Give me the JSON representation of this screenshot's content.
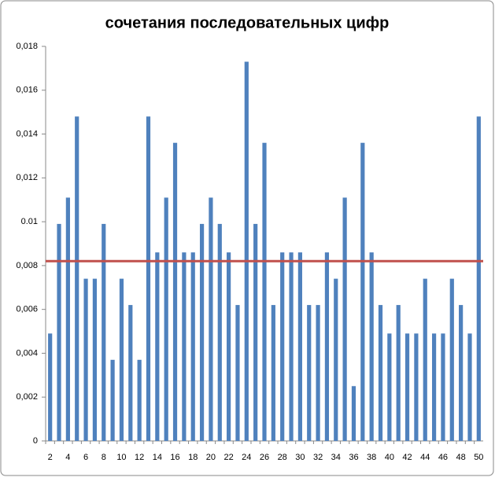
{
  "chart_data": {
    "type": "bar",
    "title": "сочетания последовательных цифр",
    "categories": [
      "2",
      null,
      "4",
      null,
      "6",
      null,
      "8",
      null,
      "10",
      null,
      "12",
      null,
      "14",
      null,
      "16",
      null,
      "18",
      null,
      "20",
      null,
      "22",
      null,
      "24",
      null,
      "26",
      null,
      "28",
      null,
      "30",
      null,
      "32",
      null,
      "34",
      null,
      "36",
      null,
      "38",
      null,
      "40",
      null,
      "42",
      null,
      "44",
      null,
      "46",
      null,
      "48",
      null,
      "50"
    ],
    "values": [
      0.0049,
      0.0099,
      0.0111,
      0.0148,
      0.0074,
      0.0074,
      0.0099,
      0.0037,
      0.0074,
      0.0062,
      0.0037,
      0.0148,
      0.0086,
      0.0111,
      0.0136,
      0.0086,
      0.0086,
      0.0099,
      0.0111,
      0.0099,
      0.0086,
      0.0062,
      0.0173,
      0.0099,
      0.0136,
      0.0062,
      0.0086,
      0.0086,
      0.0086,
      0.0062,
      0.0062,
      0.0086,
      0.0074,
      0.0111,
      0.0025,
      0.0136,
      0.0086,
      0.0062,
      0.0049,
      0.0062,
      0.0049,
      0.0049,
      0.0074,
      0.0049,
      0.0049,
      0.0074,
      0.0062,
      0.0049,
      0.0148
    ],
    "color": "#4f81bd",
    "hline": {
      "value": 0.0082,
      "color": "#c0504d"
    },
    "ylim": [
      0,
      0.018
    ],
    "yticks": [
      0,
      {
        "value": 0.002,
        "label": "0,002"
      },
      {
        "value": 0.004,
        "label": "0,004"
      },
      {
        "value": 0.006,
        "label": "0,006"
      },
      {
        "value": 0.008,
        "label": "0,008"
      },
      {
        "value": 0.01,
        "label": "0.01"
      },
      {
        "value": 0.012,
        "label": "0,012"
      },
      {
        "value": 0.014,
        "label": "0,014"
      },
      {
        "value": 0.016,
        "label": "0,016"
      },
      {
        "value": 0.018,
        "label": "0,018"
      }
    ],
    "grid": false
  }
}
